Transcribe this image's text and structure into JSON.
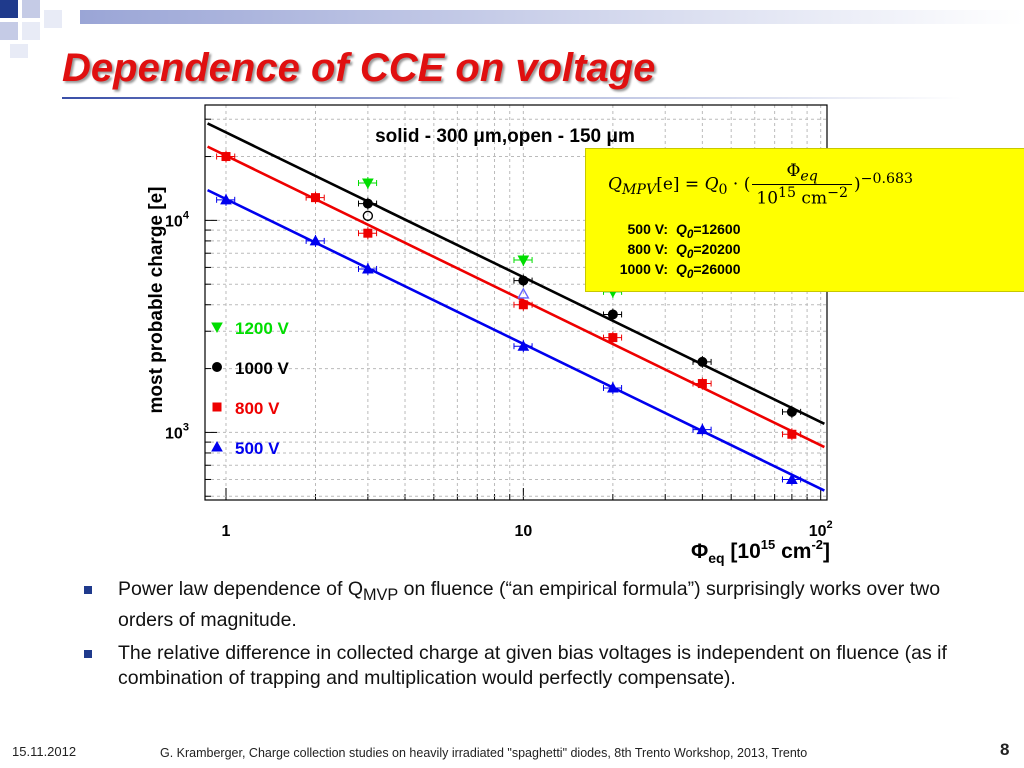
{
  "slide": {
    "title": "Dependence of CCE on voltage",
    "accent_color": "#e01010",
    "bullets": [
      {
        "before": "Power law dependence of Q",
        "sub": "MVP",
        "after": " on fluence (“an empirical formula”) surprisingly works over two orders of magnitude."
      },
      {
        "before": "The relative difference in collected charge at given bias voltages is independent on fluence (as if combination of trapping and multiplication would perfectly compensate).",
        "sub": "",
        "after": ""
      }
    ],
    "footer": {
      "date": "15.11.2012",
      "citation": "G. Kramberger, Charge collection studies on heavily irradiated \"spaghetti\" diodes, 8th Trento Workshop, 2013, Trento",
      "page": "8"
    }
  },
  "formula_box": {
    "lhs": "Q",
    "lhs_sub": "MPV",
    "lhs_unit": "[e] = ",
    "q0": "Q",
    "q0_sub": "0",
    "dot_paren": " · (",
    "numerator": "Φ",
    "numerator_sub": "eq",
    "denominator": "10",
    "denominator_exp": "15",
    "denominator_unit": " cm",
    "denominator_unit_exp": "−2",
    "close_paren": ")",
    "exponent": "−0.683",
    "fits": [
      {
        "voltage": "500 V:",
        "q_label": "Q",
        "q_sub": "0",
        "value": "=12600"
      },
      {
        "voltage": "800 V:",
        "q_label": "Q",
        "q_sub": "0",
        "value": "=20200"
      },
      {
        "voltage": "1000 V:",
        "q_label": "Q",
        "q_sub": "0",
        "value": "=26000"
      }
    ],
    "background": "#ffff00"
  },
  "chart_data": {
    "type": "scatter",
    "title": "solid - 300 μm,open - 150 μm",
    "xlabel": "Φeq [10^15 cm^-2]",
    "xlabel_parts": {
      "main": "Φ",
      "sub": "eq",
      "unit_open": " [10",
      "unit_exp": "15",
      "unit_cm": " cm",
      "unit_cm_exp": "-2",
      "unit_close": "]"
    },
    "ylabel": "most probable charge [e]",
    "x_scale": "log",
    "y_scale": "log",
    "xlim": [
      0.85,
      105
    ],
    "ylim": [
      480,
      35000
    ],
    "x_ticklabels": [
      {
        "value": 1,
        "label": "1"
      },
      {
        "value": 10,
        "label": "10"
      },
      {
        "value": 100,
        "label": "10",
        "sup": "2"
      }
    ],
    "y_ticklabels": [
      {
        "value": 1000,
        "label": "10",
        "sup": "3"
      },
      {
        "value": 10000,
        "label": "10",
        "sup": "4"
      }
    ],
    "grid": true,
    "legend_position": "left",
    "series": [
      {
        "name": "1200 V",
        "color": "#00dd00",
        "marker": "triangle-down",
        "x": [
          3,
          10,
          20
        ],
        "y": [
          15000,
          6500,
          4600
        ]
      },
      {
        "name": "1000 V",
        "color": "#000000",
        "marker": "circle",
        "x": [
          3,
          10,
          20,
          40,
          80
        ],
        "y": [
          12000,
          5200,
          3600,
          2150,
          1250
        ]
      },
      {
        "name": "800 V",
        "color": "#ee0000",
        "marker": "square",
        "x": [
          1,
          2,
          3,
          10,
          20,
          40,
          80
        ],
        "y": [
          20000,
          12800,
          8700,
          4000,
          2800,
          1700,
          980
        ]
      },
      {
        "name": "500 V",
        "color": "#0000ee",
        "marker": "triangle-up",
        "x": [
          1,
          2,
          3,
          10,
          20,
          40,
          80
        ],
        "y": [
          12500,
          8000,
          5900,
          2550,
          1620,
          1030,
          600
        ]
      }
    ],
    "open_markers": [
      {
        "color": "#000000",
        "marker": "circle",
        "x": 3,
        "y": 10500
      },
      {
        "color": "#6666ff",
        "marker": "triangle-up",
        "x": 10,
        "y": 4500
      }
    ],
    "fit_lines": [
      {
        "color": "#000000",
        "q0": 26000,
        "exponent": -0.683
      },
      {
        "color": "#ee0000",
        "q0": 20200,
        "exponent": -0.683
      },
      {
        "color": "#0000ee",
        "q0": 12600,
        "exponent": -0.683
      }
    ]
  }
}
